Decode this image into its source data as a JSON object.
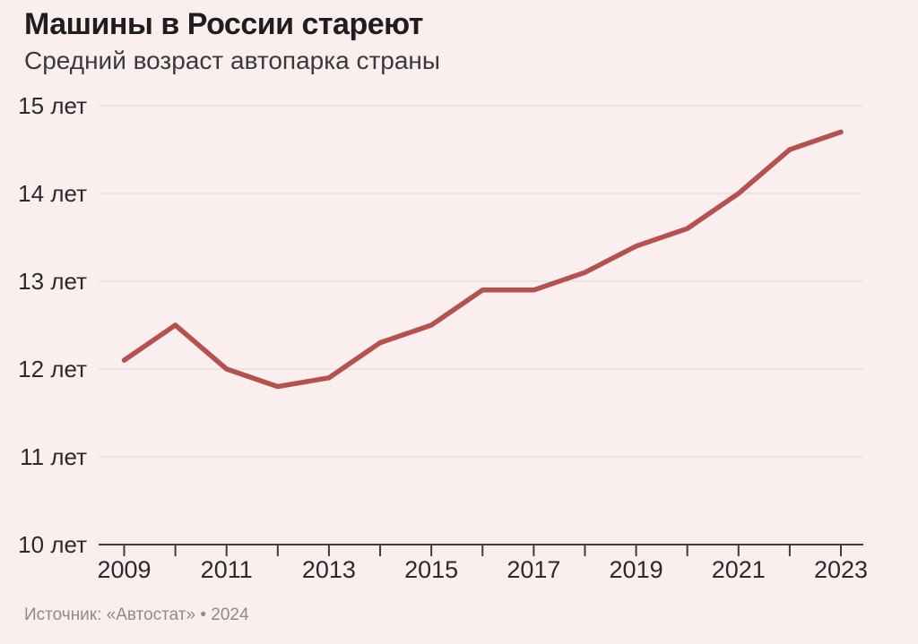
{
  "page": {
    "background_color": "#faefee"
  },
  "header": {
    "title": "Машины в России стареют",
    "subtitle": "Средний возраст автопарка страны"
  },
  "footer": {
    "source_note": "Источник: «Автостат» • 2024"
  },
  "chart_data": {
    "type": "line",
    "title": "Машины в России стареют",
    "subtitle": "Средний возраст автопарка страны",
    "source": "Источник: «Автостат» • 2024",
    "unit": "лет",
    "x": [
      2009,
      2010,
      2011,
      2012,
      2013,
      2014,
      2015,
      2016,
      2017,
      2018,
      2019,
      2020,
      2021,
      2022,
      2023
    ],
    "values": [
      12.1,
      12.5,
      12.0,
      11.8,
      11.9,
      12.3,
      12.5,
      12.9,
      12.9,
      13.1,
      13.4,
      13.6,
      14.0,
      14.5,
      14.7
    ],
    "ylim": [
      10,
      15
    ],
    "y_tick_values": [
      10,
      11,
      12,
      13,
      14,
      15
    ],
    "y_tick_labels": [
      "10 лет",
      "11 лет",
      "12 лет",
      "13 лет",
      "14 лет",
      "15 лет"
    ],
    "x_tick_values": [
      2009,
      2010,
      2011,
      2012,
      2013,
      2014,
      2015,
      2016,
      2017,
      2018,
      2019,
      2020,
      2021,
      2022,
      2023
    ],
    "x_labeled_ticks": [
      2009,
      2011,
      2013,
      2015,
      2017,
      2019,
      2021,
      2023
    ],
    "grid": "horizontal-only",
    "legend": "none",
    "line_color": "#b5514f",
    "grid_color": "#e8e0de",
    "axis_color": "#403c3b",
    "tick_label_color": "#2b2b2b"
  }
}
